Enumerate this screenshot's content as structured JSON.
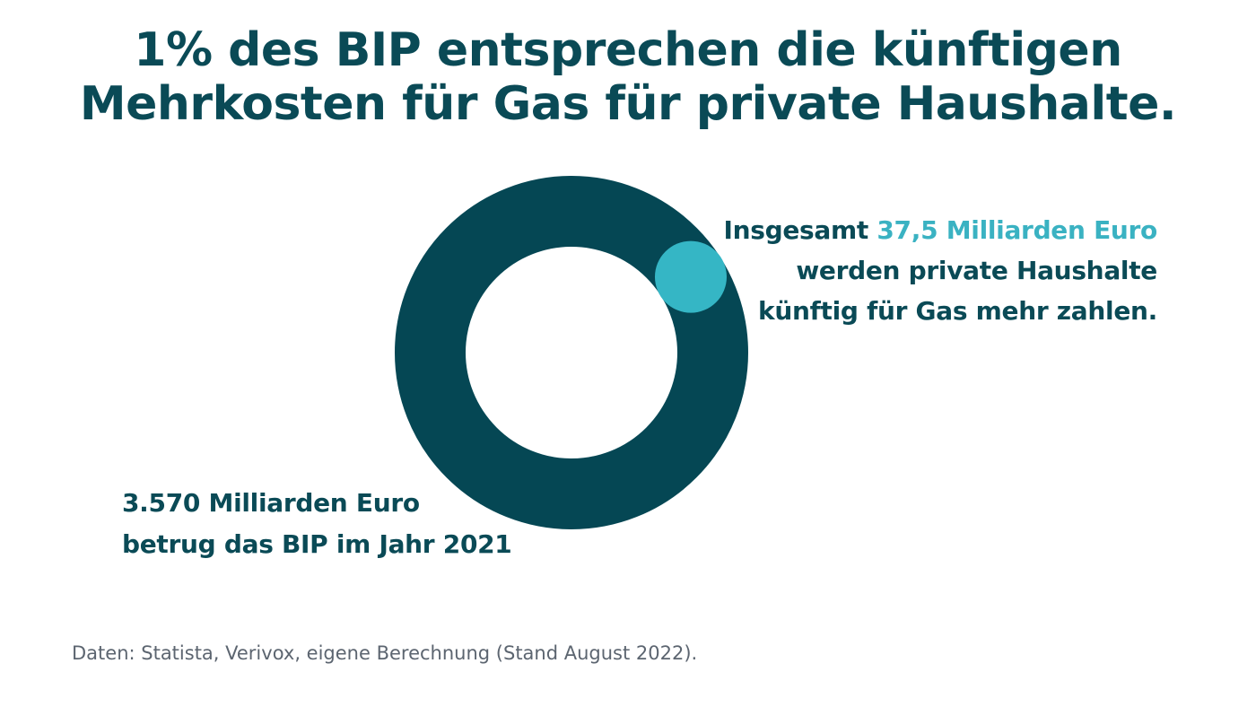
{
  "chart_data": {
    "type": "pie",
    "variant": "donut",
    "title": [
      "1% des BIP entsprechen die künftigen",
      "Mehrkosten für Gas für private Haushalte."
    ],
    "series": [
      {
        "name": "BIP 2021",
        "value": 3570,
        "unit": "Milliarden Euro",
        "color": "#054754"
      },
      {
        "name": "Mehrkosten Gas private Haushalte",
        "value": 37.5,
        "unit": "Milliarden Euro",
        "color": "#35b6c5"
      }
    ],
    "share_percent": 1,
    "annotations": {
      "right": {
        "prefix": "Insgesamt ",
        "highlight": "37,5 Milliarden Euro",
        "line2": "werden private Haushalte",
        "line3": "künftig für Gas mehr zahlen."
      },
      "left": {
        "line1": "3.570 Milliarden Euro",
        "line2": "betrug das BIP im Jahr 2021"
      }
    },
    "source": "Daten: Statista, Verivox, eigene Berechnung (Stand August 2022)."
  },
  "colors": {
    "text_dark": "#0a4a56",
    "highlight": "#3ab2c2",
    "source_text": "#5c6570",
    "background": "#ffffff"
  }
}
